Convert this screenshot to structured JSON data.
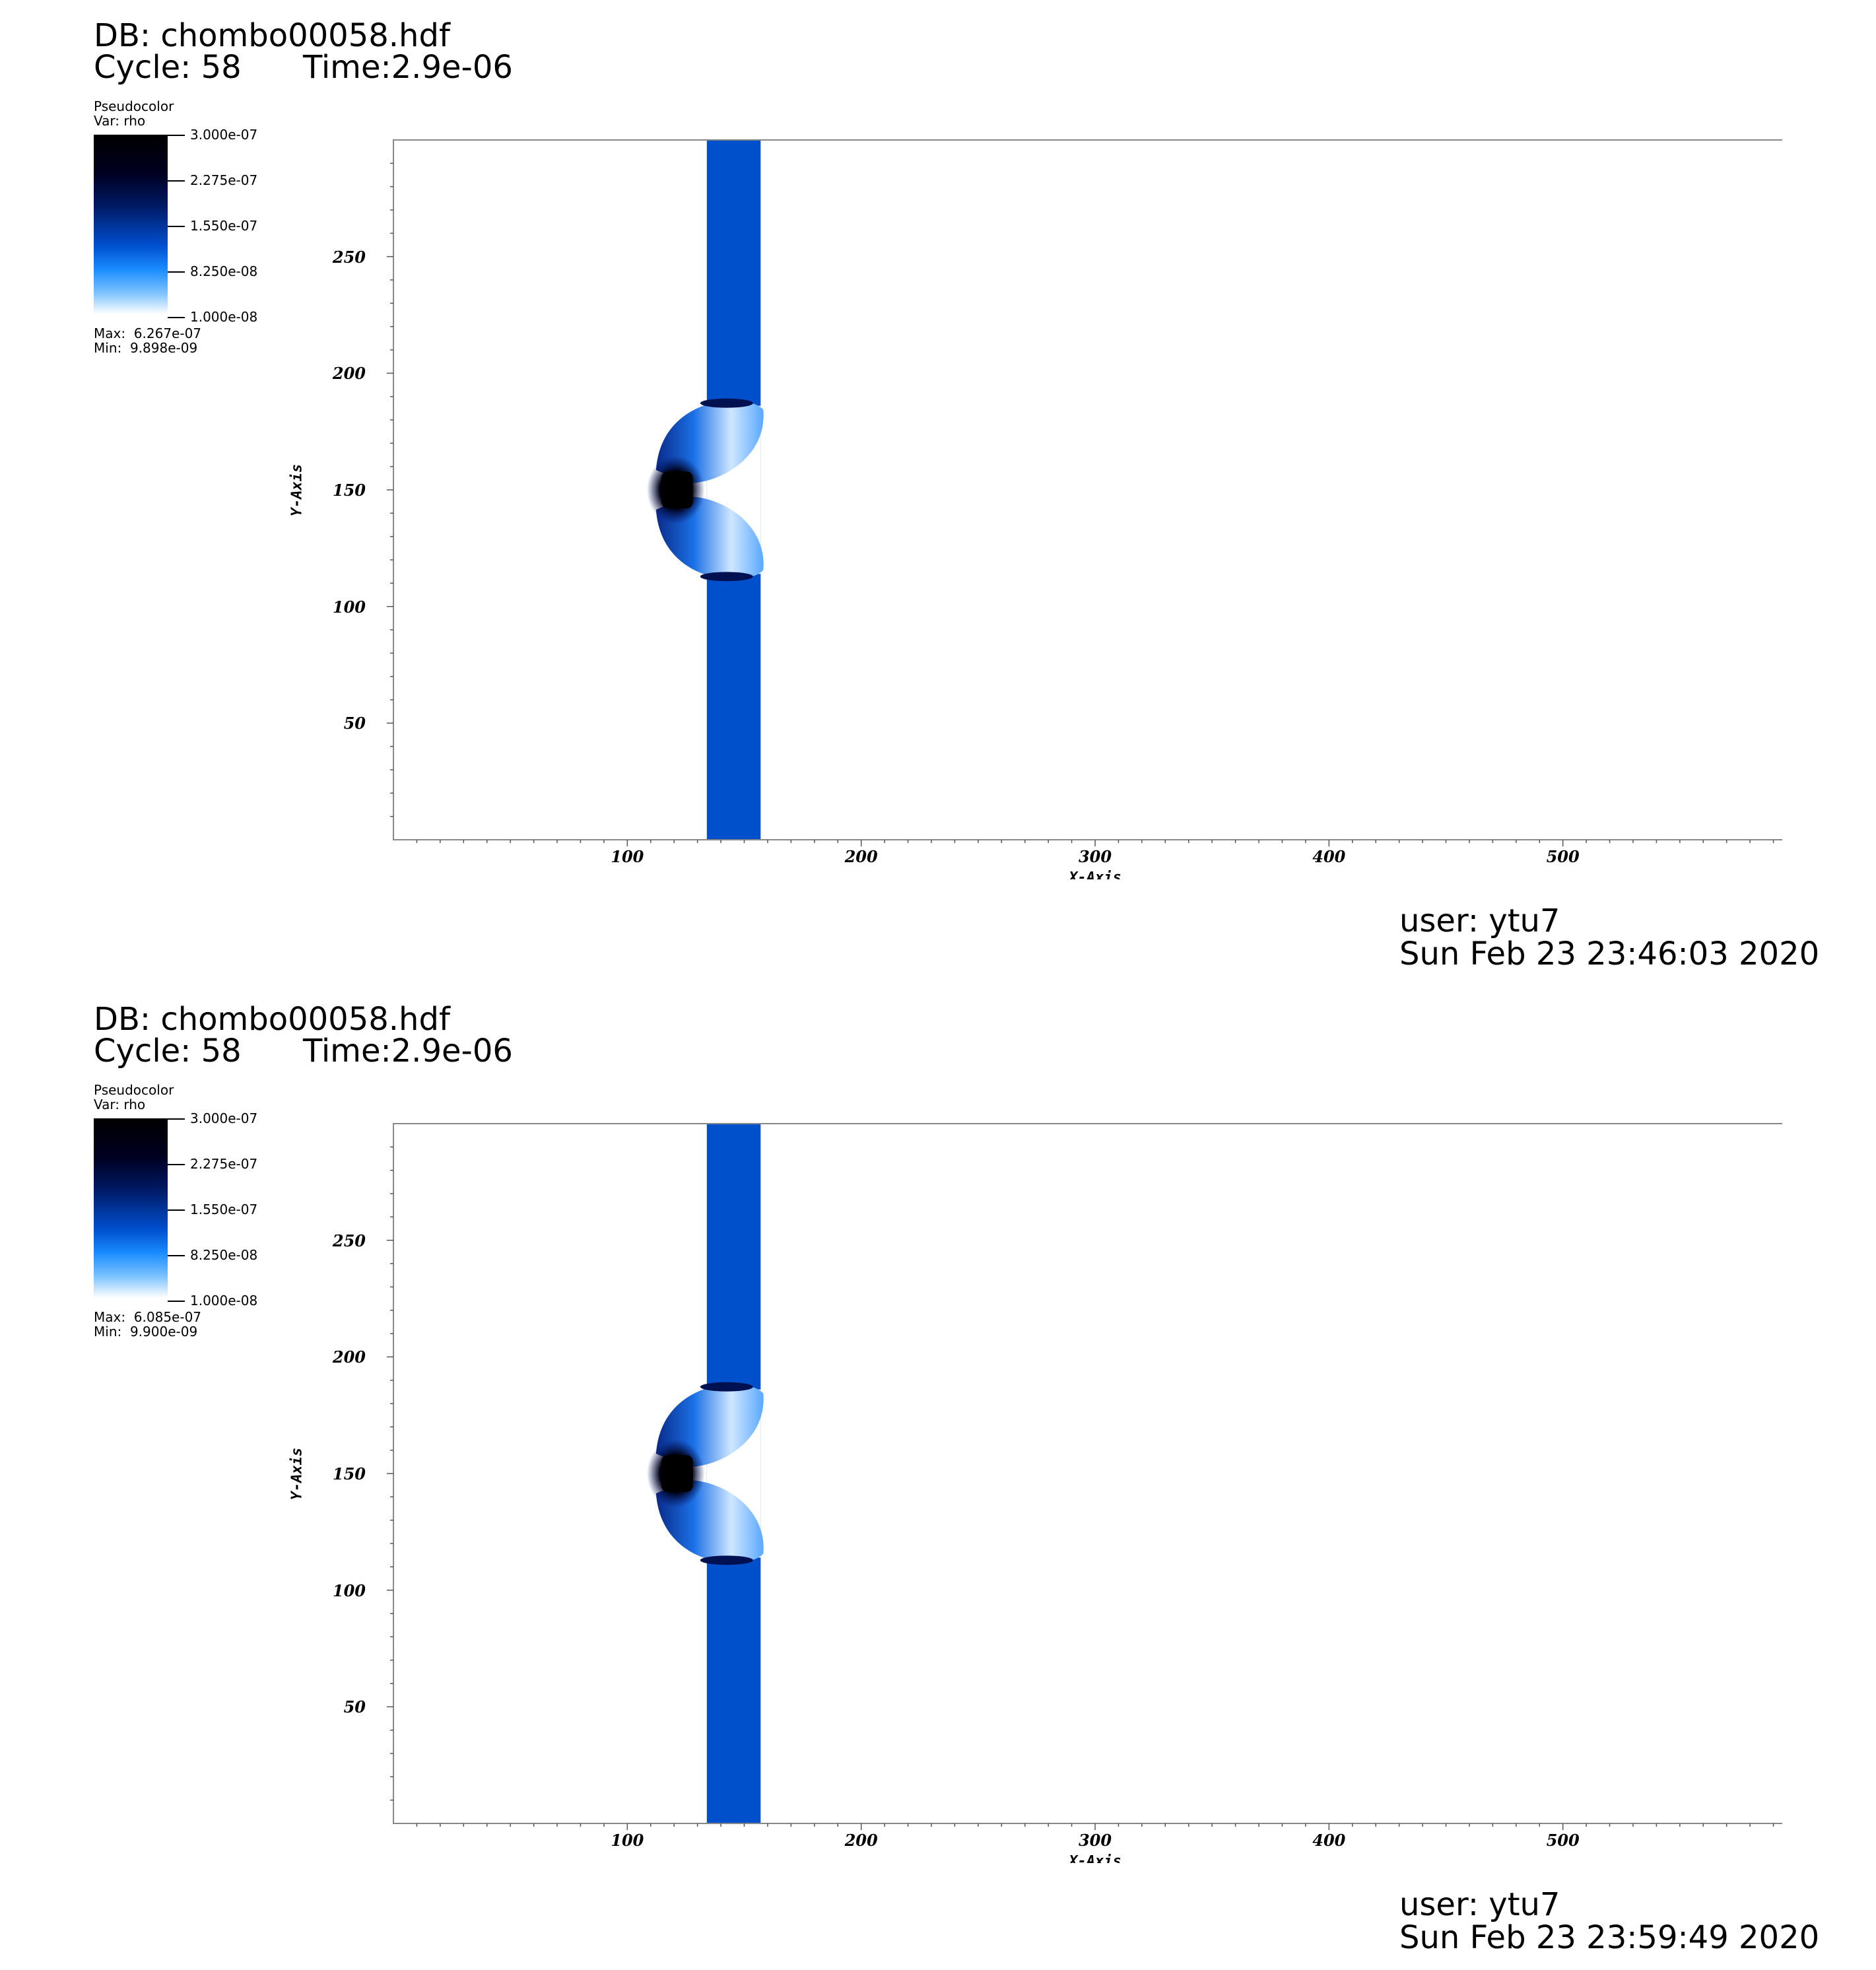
{
  "panels": [
    {
      "db_label": "DB: chombo00058.hdf",
      "cycle_label": "Cycle: 58",
      "time_label": "Time:2.9e-06",
      "legend": {
        "title": "Pseudocolor",
        "var": "Var: rho",
        "ticks": [
          "3.000e-07",
          "2.275e-07",
          "1.550e-07",
          "8.250e-08",
          "1.000e-08"
        ],
        "max_label": "Max:  6.267e-07",
        "min_label": "Min:  9.898e-09"
      },
      "user_label": "user: ytu7",
      "date_label": "Sun Feb 23 23:46:03 2020"
    },
    {
      "db_label": "DB: chombo00058.hdf",
      "cycle_label": "Cycle: 58",
      "time_label": "Time:2.9e-06",
      "legend": {
        "title": "Pseudocolor",
        "var": "Var: rho",
        "ticks": [
          "3.000e-07",
          "2.275e-07",
          "1.550e-07",
          "8.250e-08",
          "1.000e-08"
        ],
        "max_label": "Max:  6.085e-07",
        "min_label": "Min:  9.900e-09"
      },
      "user_label": "user: ytu7",
      "date_label": "Sun Feb 23 23:59:49 2020"
    }
  ],
  "chart_data": [
    {
      "type": "heatmap",
      "variable": "rho",
      "xlabel": "X-Axis",
      "ylabel": "Y-Axis",
      "xlim": [
        0,
        600
      ],
      "ylim": [
        0,
        300
      ],
      "xticks": [
        100,
        200,
        300,
        400,
        500
      ],
      "yticks": [
        50,
        100,
        150,
        200,
        250
      ],
      "color_range": [
        1e-08,
        3e-07
      ],
      "colormap": [
        "#ffffff",
        "#1a8cff",
        "#0050d0",
        "#001a66",
        "#000000"
      ],
      "field": {
        "band_x": [
          134,
          157
        ],
        "band_color": "#0050cc",
        "bubble_center": [
          123,
          150
        ],
        "bubble_y_range": [
          110,
          190
        ]
      }
    },
    {
      "type": "heatmap",
      "variable": "rho",
      "xlabel": "X-Axis",
      "ylabel": "Y-Axis",
      "xlim": [
        0,
        600
      ],
      "ylim": [
        0,
        300
      ],
      "xticks": [
        100,
        200,
        300,
        400,
        500
      ],
      "yticks": [
        50,
        100,
        150,
        200,
        250
      ],
      "color_range": [
        1e-08,
        3e-07
      ],
      "colormap": [
        "#ffffff",
        "#1a8cff",
        "#0050d0",
        "#001a66",
        "#000000"
      ],
      "field": {
        "band_x": [
          134,
          157
        ],
        "band_color": "#0050cc",
        "bubble_center": [
          123,
          150
        ],
        "bubble_y_range": [
          110,
          190
        ]
      }
    }
  ]
}
